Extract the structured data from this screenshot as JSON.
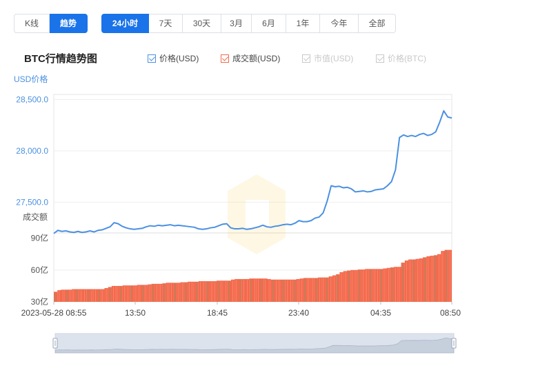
{
  "range_tabs_left": [
    {
      "label": "K线",
      "active": false
    },
    {
      "label": "趋势",
      "active": true
    }
  ],
  "range_tabs_right": [
    {
      "label": "24小时",
      "active": true
    },
    {
      "label": "7天",
      "active": false
    },
    {
      "label": "30天",
      "active": false
    },
    {
      "label": "3月",
      "active": false
    },
    {
      "label": "6月",
      "active": false
    },
    {
      "label": "1年",
      "active": false
    },
    {
      "label": "今年",
      "active": false
    },
    {
      "label": "全部",
      "active": false
    }
  ],
  "chart_title": "BTC行情趋势图",
  "legend": [
    {
      "label": "价格(USD)",
      "checked": true,
      "color": "#4a90e2"
    },
    {
      "label": "成交额(USD)",
      "checked": true,
      "color": "#f06a4a"
    },
    {
      "label": "市值(USD)",
      "checked": false,
      "color": "#c8c8c8"
    },
    {
      "label": "价格(BTC)",
      "checked": false,
      "color": "#c8c8c8"
    }
  ],
  "colors": {
    "price_line": "#4a90e2",
    "volume_bar": "#f4694c",
    "volume_bar_alt": "#3cbf8a",
    "axis_text": "#4a90e2",
    "grid": "#eeeeee",
    "brush_fill": "#dde3ed"
  },
  "chart_data": {
    "type": "line",
    "title": "BTC行情趋势图",
    "x_start_label": "2023-05-28 08:55",
    "xticks": [
      "2023-05-28 08:55",
      "13:50",
      "18:45",
      "23:40",
      "04:35",
      "08:50"
    ],
    "price": {
      "ylabel": "USD价格",
      "ylim": [
        27200,
        28550
      ],
      "yticks": [
        "27,500.0",
        "28,000.0",
        "28,500.0"
      ],
      "ytick_values": [
        27500,
        28000,
        28500
      ],
      "values": [
        27195,
        27225,
        27215,
        27220,
        27210,
        27205,
        27215,
        27205,
        27210,
        27220,
        27210,
        27225,
        27230,
        27245,
        27260,
        27300,
        27290,
        27265,
        27250,
        27240,
        27235,
        27240,
        27245,
        27260,
        27270,
        27265,
        27275,
        27270,
        27275,
        27280,
        27270,
        27275,
        27270,
        27265,
        27260,
        27255,
        27240,
        27235,
        27240,
        27250,
        27255,
        27270,
        27285,
        27290,
        27250,
        27240,
        27240,
        27245,
        27235,
        27240,
        27250,
        27260,
        27275,
        27260,
        27255,
        27265,
        27270,
        27280,
        27285,
        27280,
        27295,
        27320,
        27310,
        27310,
        27320,
        27345,
        27355,
        27395,
        27510,
        27660,
        27650,
        27655,
        27640,
        27645,
        27630,
        27600,
        27605,
        27610,
        27600,
        27605,
        27620,
        27625,
        27630,
        27660,
        27700,
        27815,
        28130,
        28155,
        28140,
        28150,
        28140,
        28160,
        28170,
        28150,
        28160,
        28185,
        28280,
        28390,
        28330,
        28320
      ],
      "ylabel_position": "top-left"
    },
    "volume": {
      "ylabel": "成交额",
      "ylim": [
        30,
        95
      ],
      "yticks": [
        "30亿",
        "60亿",
        "90亿"
      ],
      "ytick_values": [
        30,
        60,
        90
      ],
      "values": [
        39.5,
        41,
        41.5,
        41.5,
        41.5,
        42,
        42,
        42,
        42,
        42,
        42,
        42,
        42,
        42,
        43,
        44,
        45,
        45,
        45,
        45.5,
        45.5,
        45.5,
        45.5,
        46,
        46,
        46,
        46.5,
        47,
        47,
        47,
        47.5,
        48,
        48,
        48,
        48,
        48.5,
        48.5,
        49,
        49,
        49,
        49.5,
        49.5,
        49.5,
        49.5,
        49.5,
        50,
        50,
        50,
        50,
        51,
        51.5,
        51.5,
        51.5,
        51.5,
        52,
        52,
        52,
        52,
        52,
        51.5,
        51,
        51,
        51,
        51,
        51,
        51,
        51,
        51.5,
        52,
        52.5,
        52.5,
        52.5,
        52.5,
        53,
        53,
        53,
        54,
        55,
        56,
        58,
        59,
        59.5,
        60,
        60,
        60.5,
        60.5,
        61,
        61,
        61,
        61,
        61,
        61.5,
        62,
        62.5,
        63,
        63,
        67,
        69,
        70,
        70,
        70.5,
        71,
        72,
        73,
        73.5,
        74,
        75,
        78,
        79,
        79
      ]
    }
  }
}
